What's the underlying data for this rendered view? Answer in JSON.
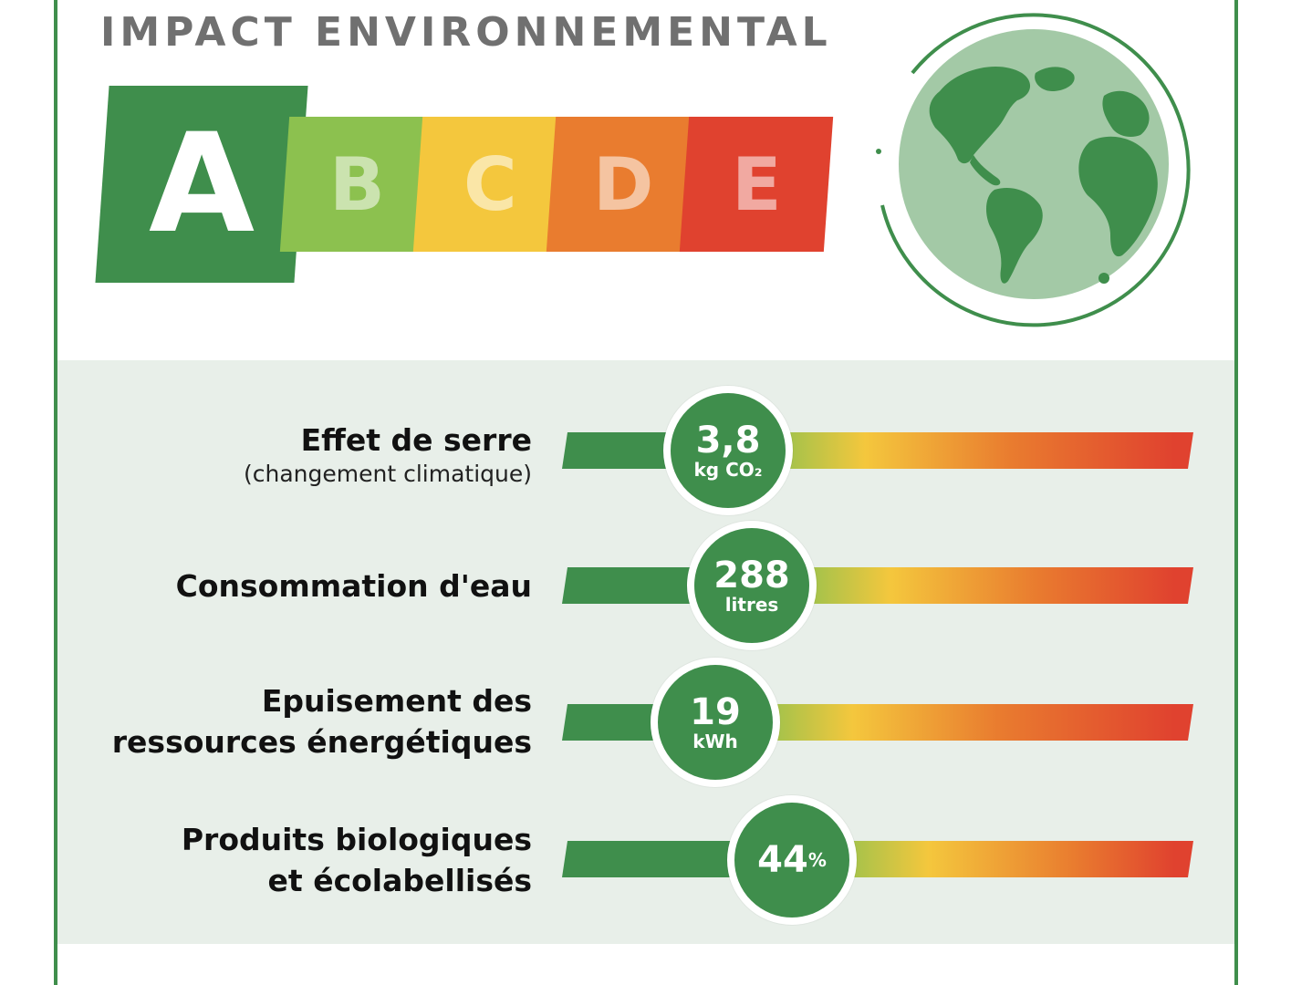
{
  "title": "IMPACT ENVIRONNEMENTAL",
  "score": {
    "active": "A",
    "grades": [
      {
        "letter": "A",
        "color": "#3f8e4c"
      },
      {
        "letter": "B",
        "color": "#8cc14f"
      },
      {
        "letter": "C",
        "color": "#f4c73d"
      },
      {
        "letter": "D",
        "color": "#e97c2f"
      },
      {
        "letter": "E",
        "color": "#e0422f"
      }
    ]
  },
  "indicators": [
    {
      "label": "Effet de serre",
      "sublabel": "(changement climatique)",
      "value": "3,8",
      "unit": "kg CO₂",
      "position": 0.26
    },
    {
      "label": "Consommation d'eau",
      "sublabel": "",
      "value": "288",
      "unit": "litres",
      "position": 0.3
    },
    {
      "label": "Epuisement des",
      "label2": "ressources énergétiques",
      "value": "19",
      "unit": "kWh",
      "position": 0.24
    },
    {
      "label": "Produits biologiques",
      "label2": "et écolabellisés",
      "value": "44",
      "unit": "%",
      "position": 0.36
    }
  ],
  "colors": {
    "green": "#3f8e4c",
    "gradient": [
      "#3f8e4c",
      "#8cc14f",
      "#f4c73d",
      "#e97c2f",
      "#e0422f"
    ]
  },
  "icons": {
    "globe": "globe-icon"
  }
}
